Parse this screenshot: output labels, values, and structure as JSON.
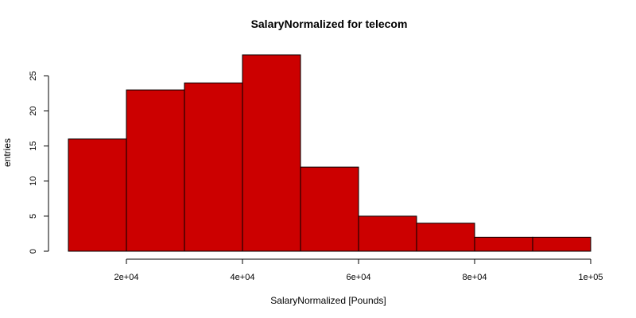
{
  "chart_data": {
    "type": "bar",
    "title": "SalaryNormalized for telecom",
    "xlabel": "SalaryNormalized [Pounds]",
    "ylabel": "entries",
    "bins": [
      {
        "x0": 10000,
        "x1": 20000,
        "count": 16
      },
      {
        "x0": 20000,
        "x1": 30000,
        "count": 23
      },
      {
        "x0": 30000,
        "x1": 40000,
        "count": 24
      },
      {
        "x0": 40000,
        "x1": 50000,
        "count": 28
      },
      {
        "x0": 50000,
        "x1": 60000,
        "count": 12
      },
      {
        "x0": 60000,
        "x1": 70000,
        "count": 5
      },
      {
        "x0": 70000,
        "x1": 80000,
        "count": 4
      },
      {
        "x0": 80000,
        "x1": 90000,
        "count": 2
      },
      {
        "x0": 90000,
        "x1": 100000,
        "count": 2
      }
    ],
    "xlim": [
      10000,
      100000
    ],
    "ylim": [
      0,
      28
    ],
    "x_ticks": [
      20000,
      40000,
      60000,
      80000,
      100000
    ],
    "x_tick_labels": [
      "2e+04",
      "4e+04",
      "6e+04",
      "8e+04",
      "1e+05"
    ],
    "y_ticks": [
      0,
      5,
      10,
      15,
      20,
      25
    ],
    "y_tick_labels": [
      "0",
      "5",
      "10",
      "15",
      "20",
      "25"
    ],
    "bar_color": "#cc0000",
    "grid": false
  }
}
